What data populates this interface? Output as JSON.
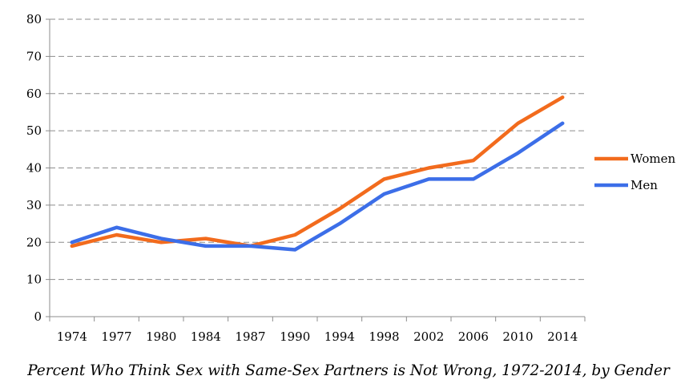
{
  "chart_data": {
    "type": "line",
    "title": "Percent Who Think Sex with Same-Sex Partners is Not Wrong, 1972-2014, by Gender",
    "categories": [
      "1974",
      "1977",
      "1980",
      "1984",
      "1987",
      "1990",
      "1994",
      "1998",
      "2002",
      "2006",
      "2010",
      "2014"
    ],
    "series": [
      {
        "name": "Women",
        "color": "#f26b1d",
        "values": [
          19,
          22,
          20,
          21,
          19,
          22,
          29,
          37,
          40,
          42,
          52,
          59
        ]
      },
      {
        "name": "Men",
        "color": "#3c6ee8",
        "values": [
          20,
          24,
          21,
          19,
          19,
          18,
          25,
          33,
          37,
          37,
          44,
          52
        ]
      }
    ],
    "ylim": [
      0,
      80
    ],
    "yticks": [
      "0",
      "10",
      "20",
      "30",
      "40",
      "50",
      "60",
      "70",
      "80"
    ],
    "grid": "horizontal dashed",
    "legend_position": "right",
    "xlabel": "",
    "ylabel": ""
  }
}
